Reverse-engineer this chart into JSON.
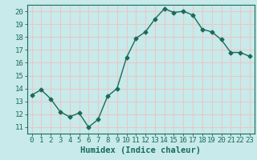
{
  "x": [
    0,
    1,
    2,
    3,
    4,
    5,
    6,
    7,
    8,
    9,
    10,
    11,
    12,
    13,
    14,
    15,
    16,
    17,
    18,
    19,
    20,
    21,
    22,
    23
  ],
  "y": [
    13.5,
    13.9,
    13.2,
    12.2,
    11.8,
    12.1,
    11.0,
    11.6,
    13.4,
    14.0,
    16.4,
    17.9,
    18.4,
    19.4,
    20.2,
    19.9,
    20.0,
    19.7,
    18.6,
    18.4,
    17.8,
    16.8,
    16.8,
    16.5
  ],
  "line_color": "#1a6b5a",
  "marker": "D",
  "marker_size": 2.5,
  "bg_color": "#c8eaea",
  "grid_color": "#e8c8c8",
  "xlabel": "Humidex (Indice chaleur)",
  "xlabel_color": "#1a6b5a",
  "xlim": [
    -0.5,
    23.5
  ],
  "ylim": [
    10.5,
    20.5
  ],
  "yticks": [
    11,
    12,
    13,
    14,
    15,
    16,
    17,
    18,
    19,
    20
  ],
  "xticks": [
    0,
    1,
    2,
    3,
    4,
    5,
    6,
    7,
    8,
    9,
    10,
    11,
    12,
    13,
    14,
    15,
    16,
    17,
    18,
    19,
    20,
    21,
    22,
    23
  ],
  "tick_fontsize": 6.5,
  "xlabel_fontsize": 7.5
}
